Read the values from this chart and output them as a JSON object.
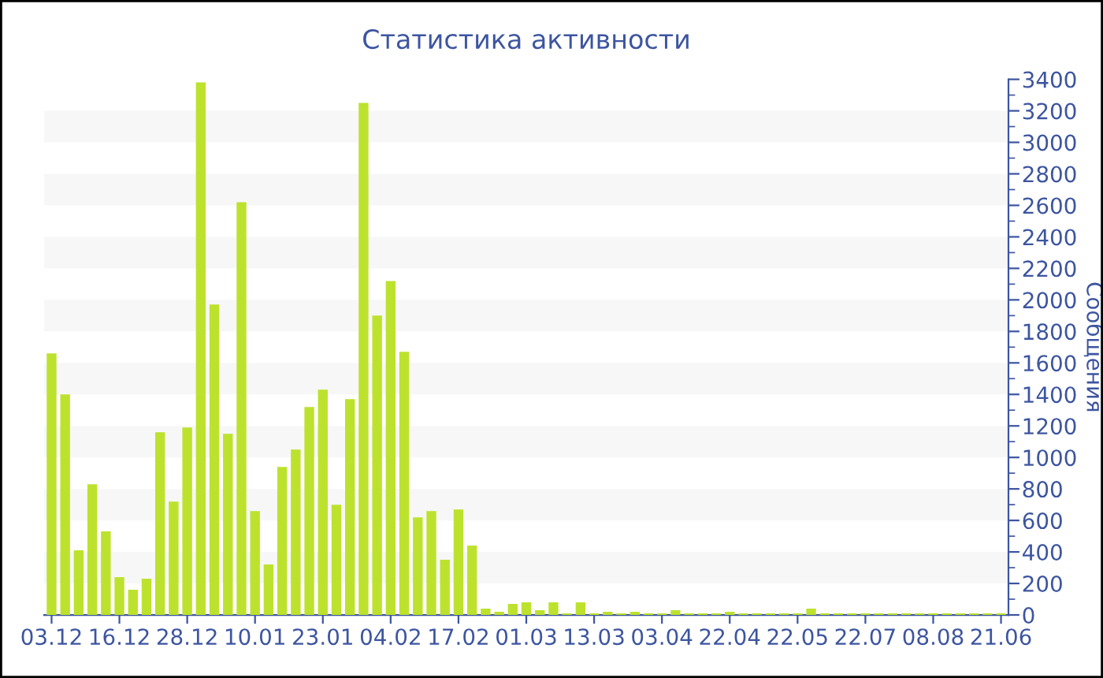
{
  "chart_data": {
    "type": "bar",
    "title": "Статистика активности",
    "ylabel": "Сообщения",
    "categories": [
      "03.12",
      null,
      null,
      null,
      null,
      "16.12",
      null,
      null,
      null,
      null,
      "28.12",
      null,
      null,
      null,
      null,
      "10.01",
      null,
      null,
      null,
      null,
      "23.01",
      null,
      null,
      null,
      null,
      "04.02",
      null,
      null,
      null,
      null,
      "17.02",
      null,
      null,
      null,
      null,
      "01.03",
      null,
      null,
      null,
      null,
      "13.03",
      null,
      null,
      null,
      null,
      "03.04",
      null,
      null,
      null,
      null,
      "22.04",
      null,
      null,
      null,
      null,
      "22.05",
      null,
      null,
      null,
      null,
      "22.07",
      null,
      null,
      null,
      null,
      "08.08",
      null,
      null,
      null,
      null,
      "21.06"
    ],
    "values": [
      1660,
      1400,
      410,
      830,
      530,
      240,
      160,
      230,
      1160,
      720,
      1190,
      3380,
      1970,
      1150,
      2620,
      660,
      320,
      940,
      1050,
      1320,
      1430,
      700,
      1370,
      3250,
      1900,
      2120,
      1670,
      620,
      660,
      350,
      670,
      440,
      40,
      20,
      70,
      80,
      30,
      80,
      10,
      80,
      10,
      20,
      10,
      20,
      10,
      10,
      30,
      10,
      10,
      10,
      20,
      10,
      10,
      10,
      10,
      10,
      40,
      10,
      10,
      10,
      10,
      10,
      10,
      10,
      10,
      10,
      10,
      10,
      10,
      10,
      10
    ],
    "color": "#bde22e",
    "ylim": [
      0,
      3400
    ],
    "yticks": [
      0,
      {
        "value": 100,
        "label": null
      },
      200,
      {
        "value": 300,
        "label": null
      },
      400,
      {
        "value": 500,
        "label": null
      },
      600,
      {
        "value": 700,
        "label": null
      },
      800,
      {
        "value": 900,
        "label": null
      },
      1000,
      {
        "value": 1100,
        "label": null
      },
      1200,
      {
        "value": 1300,
        "label": null
      },
      1400,
      {
        "value": 1500,
        "label": null
      },
      1600,
      {
        "value": 1700,
        "label": null
      },
      1800,
      {
        "value": 1900,
        "label": null
      },
      2000,
      {
        "value": 2100,
        "label": null
      },
      2200,
      {
        "value": 2300,
        "label": null
      },
      2400,
      {
        "value": 2500,
        "label": null
      },
      2600,
      {
        "value": 2700,
        "label": null
      },
      2800,
      {
        "value": 2900,
        "label": null
      },
      3000,
      {
        "value": 3100,
        "label": null
      },
      3200,
      {
        "value": 3300,
        "label": null
      },
      3400
    ],
    "bands": [
      {
        "axis": "y",
        "from": 200,
        "to": 400,
        "color": "#f7f7f7"
      },
      {
        "axis": "y",
        "from": 600,
        "to": 800,
        "color": "#f7f7f7"
      },
      {
        "axis": "y",
        "from": 1000,
        "to": 1200,
        "color": "#f7f7f7"
      },
      {
        "axis": "y",
        "from": 1400,
        "to": 1600,
        "color": "#f7f7f7"
      },
      {
        "axis": "y",
        "from": 1800,
        "to": 2000,
        "color": "#f7f7f7"
      },
      {
        "axis": "y",
        "from": 2200,
        "to": 2400,
        "color": "#f7f7f7"
      },
      {
        "axis": "y",
        "from": 2600,
        "to": 2800,
        "color": "#f7f7f7"
      },
      {
        "axis": "y",
        "from": 3000,
        "to": 3200,
        "color": "#f7f7f7"
      }
    ],
    "grid": false,
    "legend": false
  }
}
